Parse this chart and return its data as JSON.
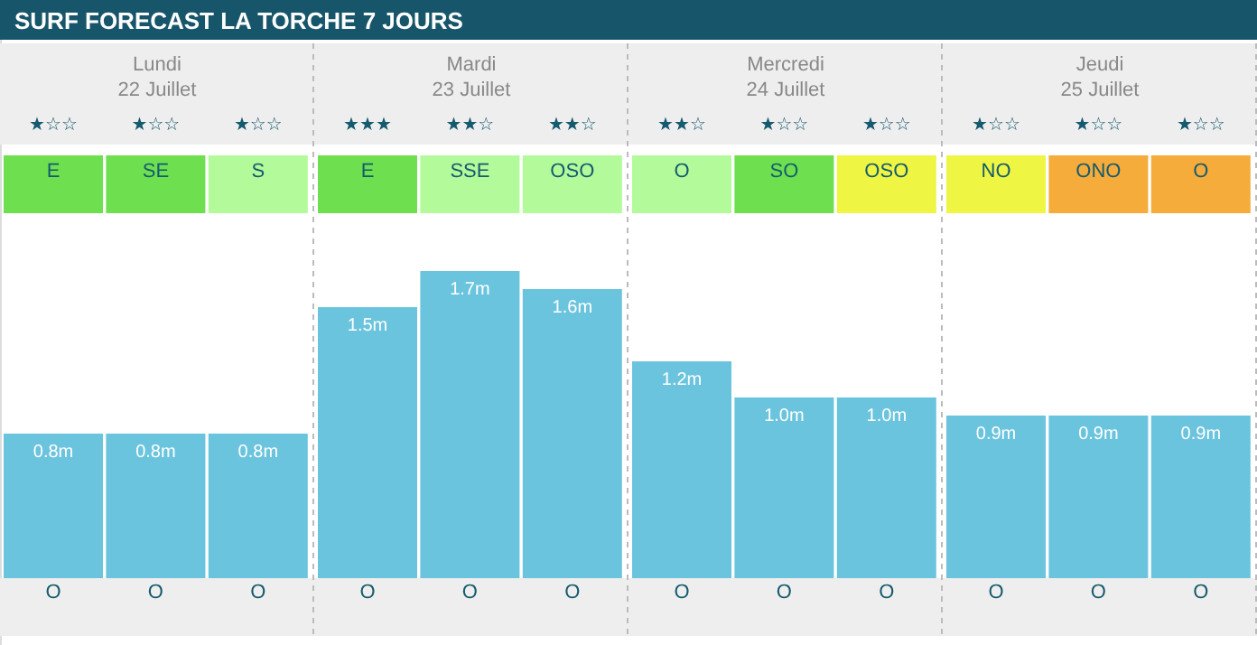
{
  "chart_data": {
    "type": "bar",
    "title": "SURF FORECAST LA TORCHE 7 JOURS",
    "categories": [
      "O",
      "O",
      "O",
      "O",
      "O",
      "O",
      "O",
      "O",
      "O",
      "O",
      "O",
      "O"
    ],
    "values": [
      0.8,
      0.8,
      0.8,
      1.5,
      1.7,
      1.6,
      1.2,
      1.0,
      1.0,
      0.9,
      0.9,
      0.9
    ],
    "value_labels": [
      "0.8m",
      "0.8m",
      "0.8m",
      "1.5m",
      "1.7m",
      "1.6m",
      "1.2m",
      "1.0m",
      "1.0m",
      "0.9m",
      "0.9m",
      "0.9m"
    ],
    "color": "#6bc4dd",
    "annotations": [
      "Lundi",
      "Mardi",
      "Mercredi",
      "Jeudi",
      "22 Juillet",
      "23 Juillet",
      "24 Juillet",
      "25 Juillet",
      "★☆☆",
      "★☆☆",
      "★☆☆",
      "★★★",
      "★★☆",
      "★★☆",
      "★★☆",
      "★☆☆",
      "★☆☆",
      "★☆☆",
      "★☆☆",
      "★☆☆",
      "E",
      "SE",
      "S",
      "E",
      "SSE",
      "OSO",
      "O",
      "SO",
      "OSO",
      "NO",
      "ONO",
      "O"
    ]
  }
}
